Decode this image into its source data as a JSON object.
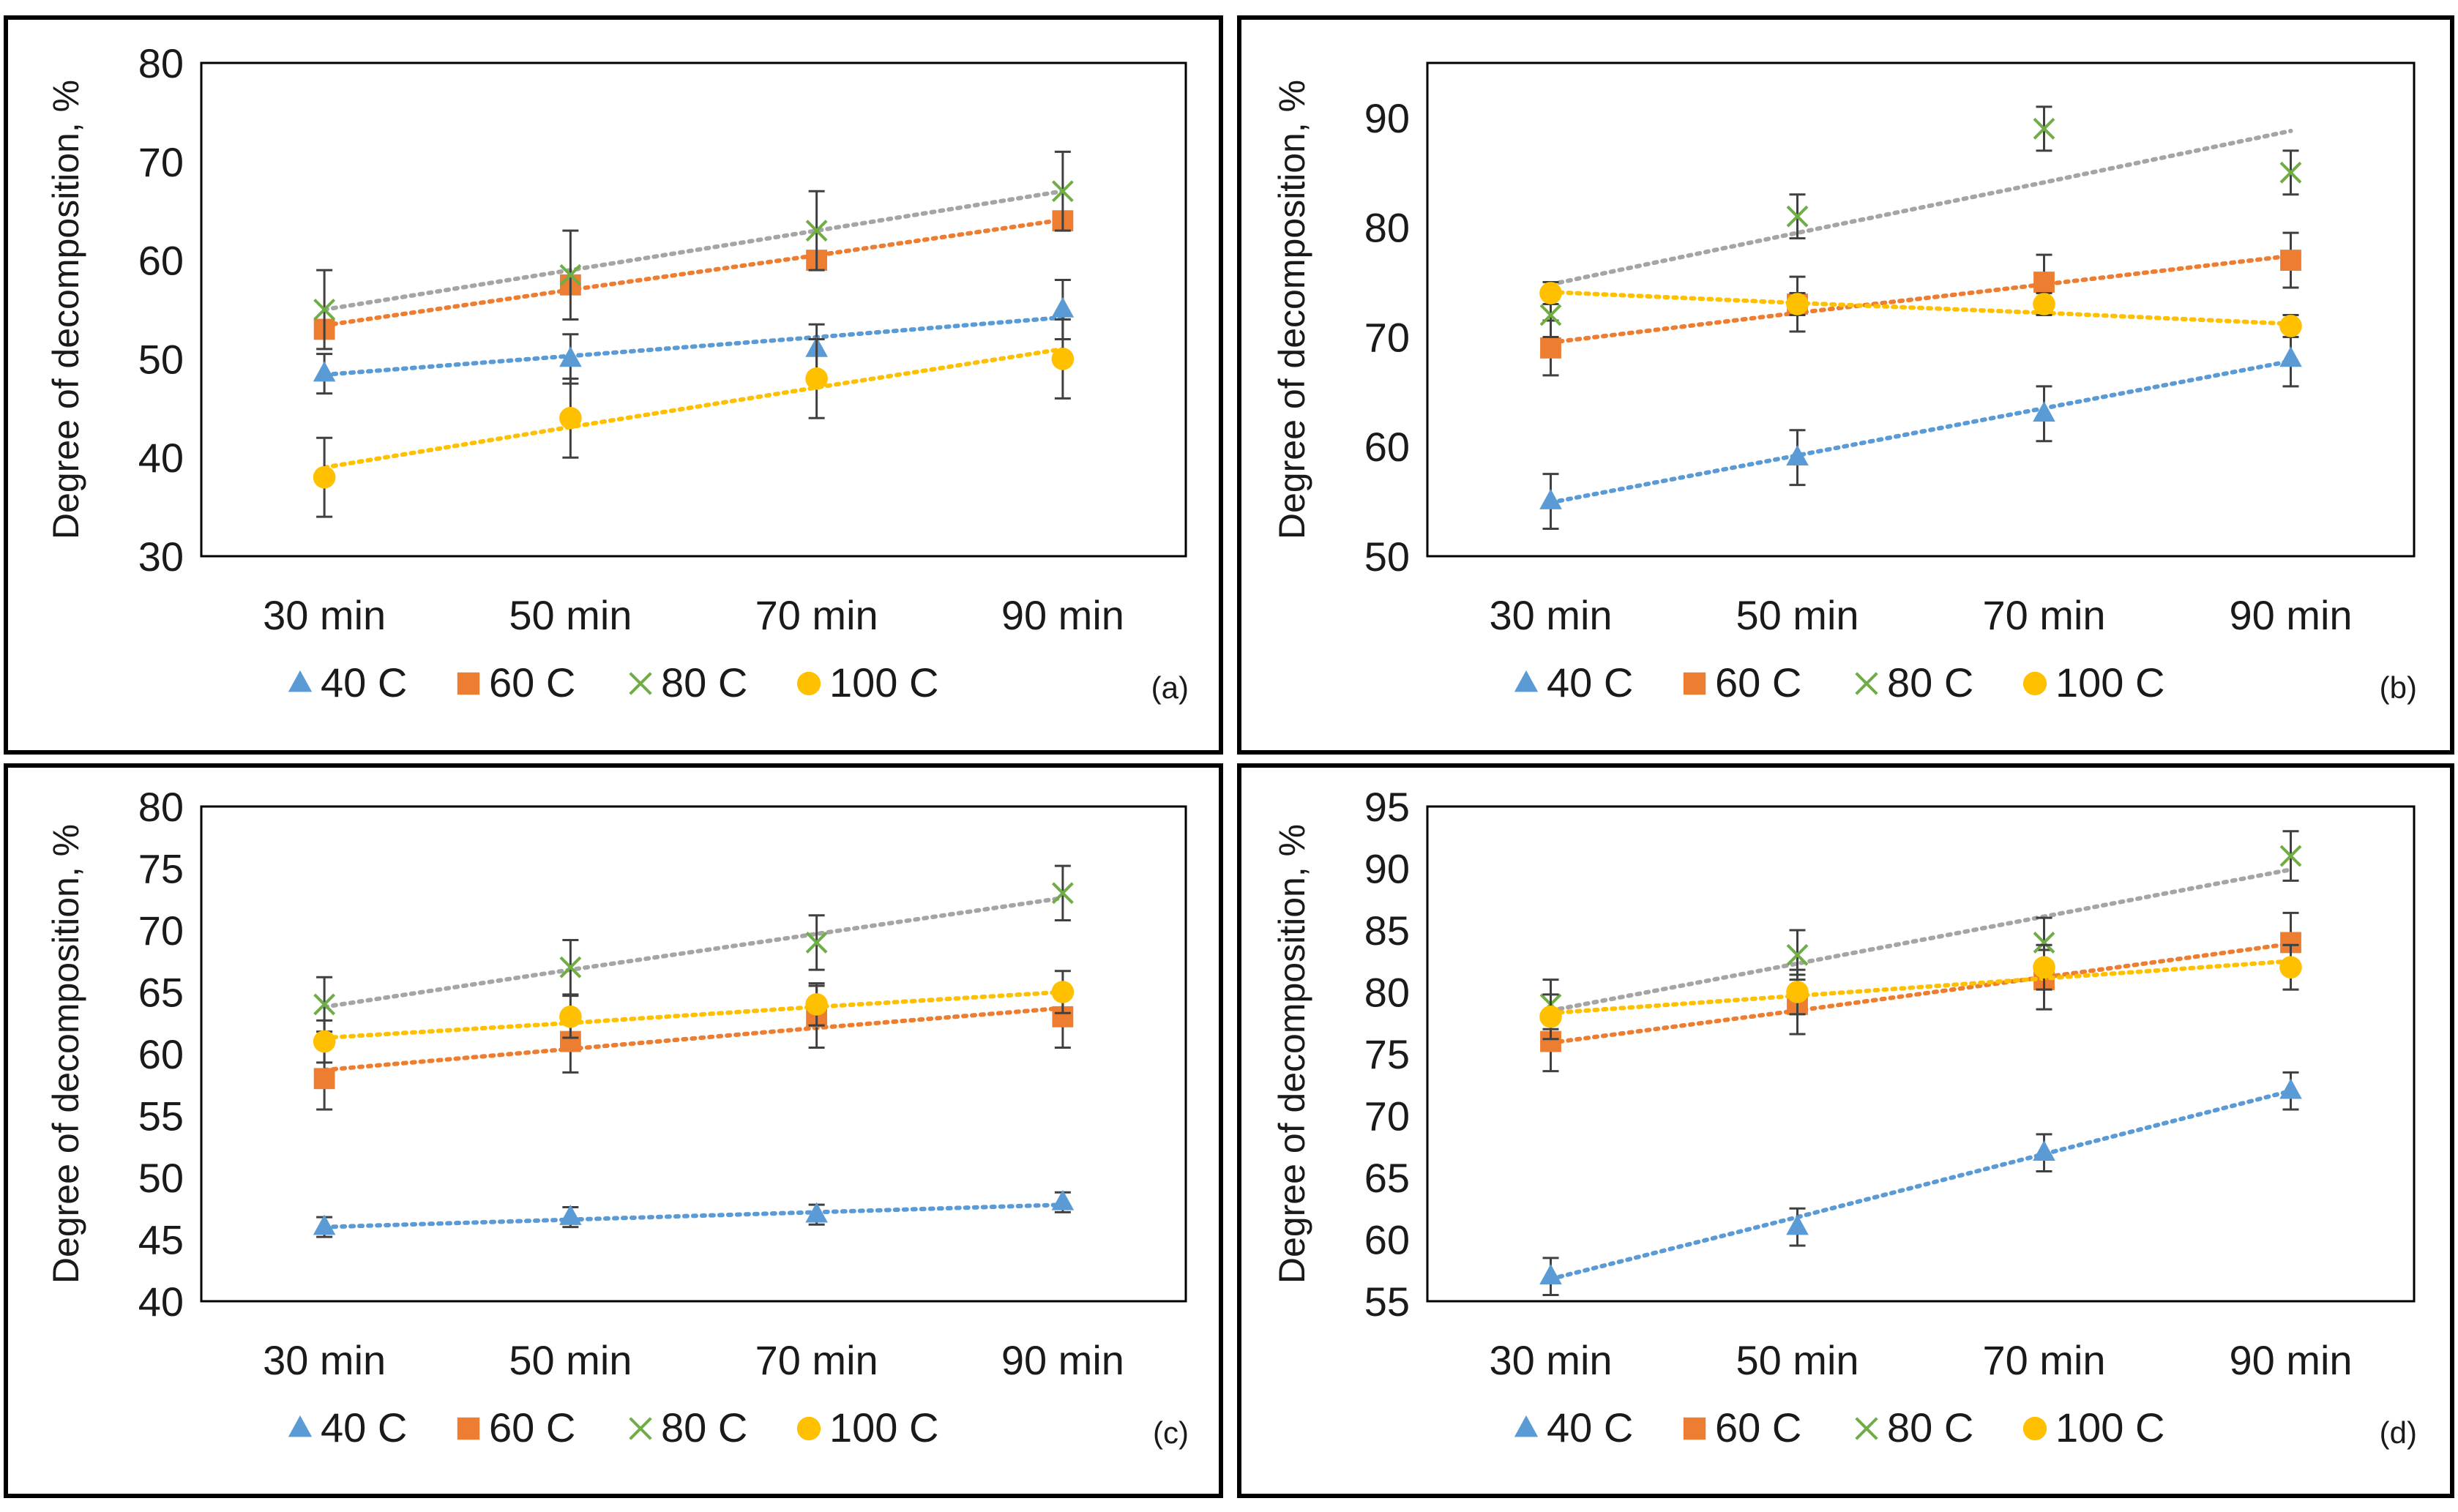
{
  "colors": {
    "s40": "#5b9bd5",
    "s60": "#ed7d31",
    "s80": "#70ad47",
    "s100": "#ffc000",
    "trend80": "#a5a5a5",
    "error": "#404040",
    "frame": "#000000"
  },
  "chart_data": [
    {
      "panel": "(a)",
      "type": "scatter",
      "ylabel": "Degree of decomposition, %",
      "ylim": [
        30,
        80
      ],
      "yticks": [
        30,
        40,
        50,
        60,
        70,
        80
      ],
      "categories": [
        "30 min",
        "50 min",
        "70 min",
        "90 min"
      ],
      "series": [
        {
          "key": "s40",
          "name": "40 C",
          "marker": "triangle",
          "values": [
            48.5,
            50,
            51,
            55
          ],
          "error": [
            2,
            2.5,
            2.5,
            3
          ],
          "trend": [
            48.4,
            50.3,
            52.2,
            54.2
          ]
        },
        {
          "key": "s60",
          "name": "60 C",
          "marker": "square",
          "values": [
            53,
            57.5,
            60,
            64
          ],
          "error": [
            0,
            0,
            0,
            0
          ],
          "trend": [
            53.4,
            57,
            60.5,
            64.1
          ]
        },
        {
          "key": "s80",
          "name": "80 C",
          "marker": "x",
          "values": [
            55,
            58.5,
            63,
            67
          ],
          "error": [
            4,
            4.5,
            4,
            4
          ],
          "trend": [
            55,
            59,
            63,
            67
          ]
        },
        {
          "key": "s100",
          "name": "100 C",
          "marker": "circle",
          "values": [
            38,
            44,
            48,
            50
          ],
          "error": [
            4,
            4,
            4,
            4
          ],
          "trend": [
            39,
            43.1,
            47.1,
            51
          ]
        }
      ]
    },
    {
      "panel": "(b)",
      "type": "scatter",
      "ylabel": "Degree of decomposition, %",
      "ylim": [
        50,
        95
      ],
      "yticks": [
        50,
        60,
        70,
        80,
        90
      ],
      "categories": [
        "30 min",
        "50 min",
        "70 min",
        "90 min"
      ],
      "series": [
        {
          "key": "s40",
          "name": "40 C",
          "marker": "triangle",
          "values": [
            55,
            59,
            63,
            68
          ],
          "error": [
            2.5,
            2.5,
            2.5,
            2.5
          ],
          "trend": [
            54.9,
            59.2,
            63.5,
            67.8
          ]
        },
        {
          "key": "s60",
          "name": "60 C",
          "marker": "square",
          "values": [
            69,
            73,
            75,
            77
          ],
          "error": [
            2.5,
            2.5,
            2.5,
            2.5
          ],
          "trend": [
            69.5,
            72.2,
            74.8,
            77.4
          ]
        },
        {
          "key": "s80",
          "name": "80 C",
          "marker": "x",
          "values": [
            72,
            81,
            89,
            85
          ],
          "error": [
            2,
            2,
            2,
            2
          ],
          "trend": [
            74.8,
            79.5,
            84.1,
            88.8
          ]
        },
        {
          "key": "s100",
          "name": "100 C",
          "marker": "circle",
          "values": [
            74,
            73,
            73,
            71
          ],
          "error": [
            1,
            1,
            1,
            1
          ],
          "trend": [
            74.1,
            73.1,
            72.2,
            71.2
          ]
        }
      ]
    },
    {
      "panel": "(c)",
      "type": "scatter",
      "ylabel": "Degree of decomposition, %",
      "ylim": [
        40,
        80
      ],
      "yticks": [
        40,
        45,
        50,
        55,
        60,
        65,
        70,
        75,
        80
      ],
      "categories": [
        "30 min",
        "50 min",
        "70 min",
        "90 min"
      ],
      "series": [
        {
          "key": "s40",
          "name": "40 C",
          "marker": "triangle",
          "values": [
            46,
            46.8,
            47,
            48
          ],
          "error": [
            0.8,
            0.8,
            0.8,
            0.8
          ],
          "trend": [
            46,
            46.6,
            47.2,
            47.8
          ]
        },
        {
          "key": "s60",
          "name": "60 C",
          "marker": "square",
          "values": [
            58,
            61,
            63,
            63
          ],
          "error": [
            2.5,
            2.5,
            2.5,
            2.5
          ],
          "trend": [
            58.7,
            60.4,
            62.1,
            63.7
          ]
        },
        {
          "key": "s80",
          "name": "80 C",
          "marker": "x",
          "values": [
            64,
            67,
            69,
            73
          ],
          "error": [
            2.2,
            2.2,
            2.2,
            2.2
          ],
          "trend": [
            63.8,
            66.8,
            69.7,
            72.6
          ]
        },
        {
          "key": "s100",
          "name": "100 C",
          "marker": "circle",
          "values": [
            61,
            63,
            64,
            65
          ],
          "error": [
            1.7,
            1.7,
            1.7,
            1.7
          ],
          "trend": [
            61.3,
            62.5,
            63.8,
            65
          ]
        }
      ]
    },
    {
      "panel": "(d)",
      "type": "scatter",
      "ylabel": "Degree of decomposition, %",
      "ylim": [
        55,
        95
      ],
      "yticks": [
        55,
        60,
        65,
        70,
        75,
        80,
        85,
        90,
        95
      ],
      "categories": [
        "30 min",
        "50 min",
        "70 min",
        "90 min"
      ],
      "series": [
        {
          "key": "s40",
          "name": "40 C",
          "marker": "triangle",
          "values": [
            57,
            61,
            67,
            72
          ],
          "error": [
            1.5,
            1.5,
            1.5,
            1.5
          ],
          "trend": [
            56.8,
            61.8,
            66.9,
            72
          ]
        },
        {
          "key": "s60",
          "name": "60 C",
          "marker": "square",
          "values": [
            76,
            79,
            81,
            84
          ],
          "error": [
            2.4,
            2.4,
            2.4,
            2.4
          ],
          "trend": [
            75.9,
            78.5,
            81.2,
            83.9
          ]
        },
        {
          "key": "s80",
          "name": "80 C",
          "marker": "x",
          "values": [
            79,
            83,
            84,
            91
          ],
          "error": [
            2,
            2,
            2,
            2
          ],
          "trend": [
            78.5,
            82.3,
            86.1,
            89.9
          ]
        },
        {
          "key": "s100",
          "name": "100 C",
          "marker": "circle",
          "values": [
            78,
            80,
            82,
            82
          ],
          "error": [
            1.8,
            1.8,
            1.8,
            1.8
          ],
          "trend": [
            78.3,
            79.7,
            81.1,
            82.5
          ]
        }
      ]
    }
  ]
}
